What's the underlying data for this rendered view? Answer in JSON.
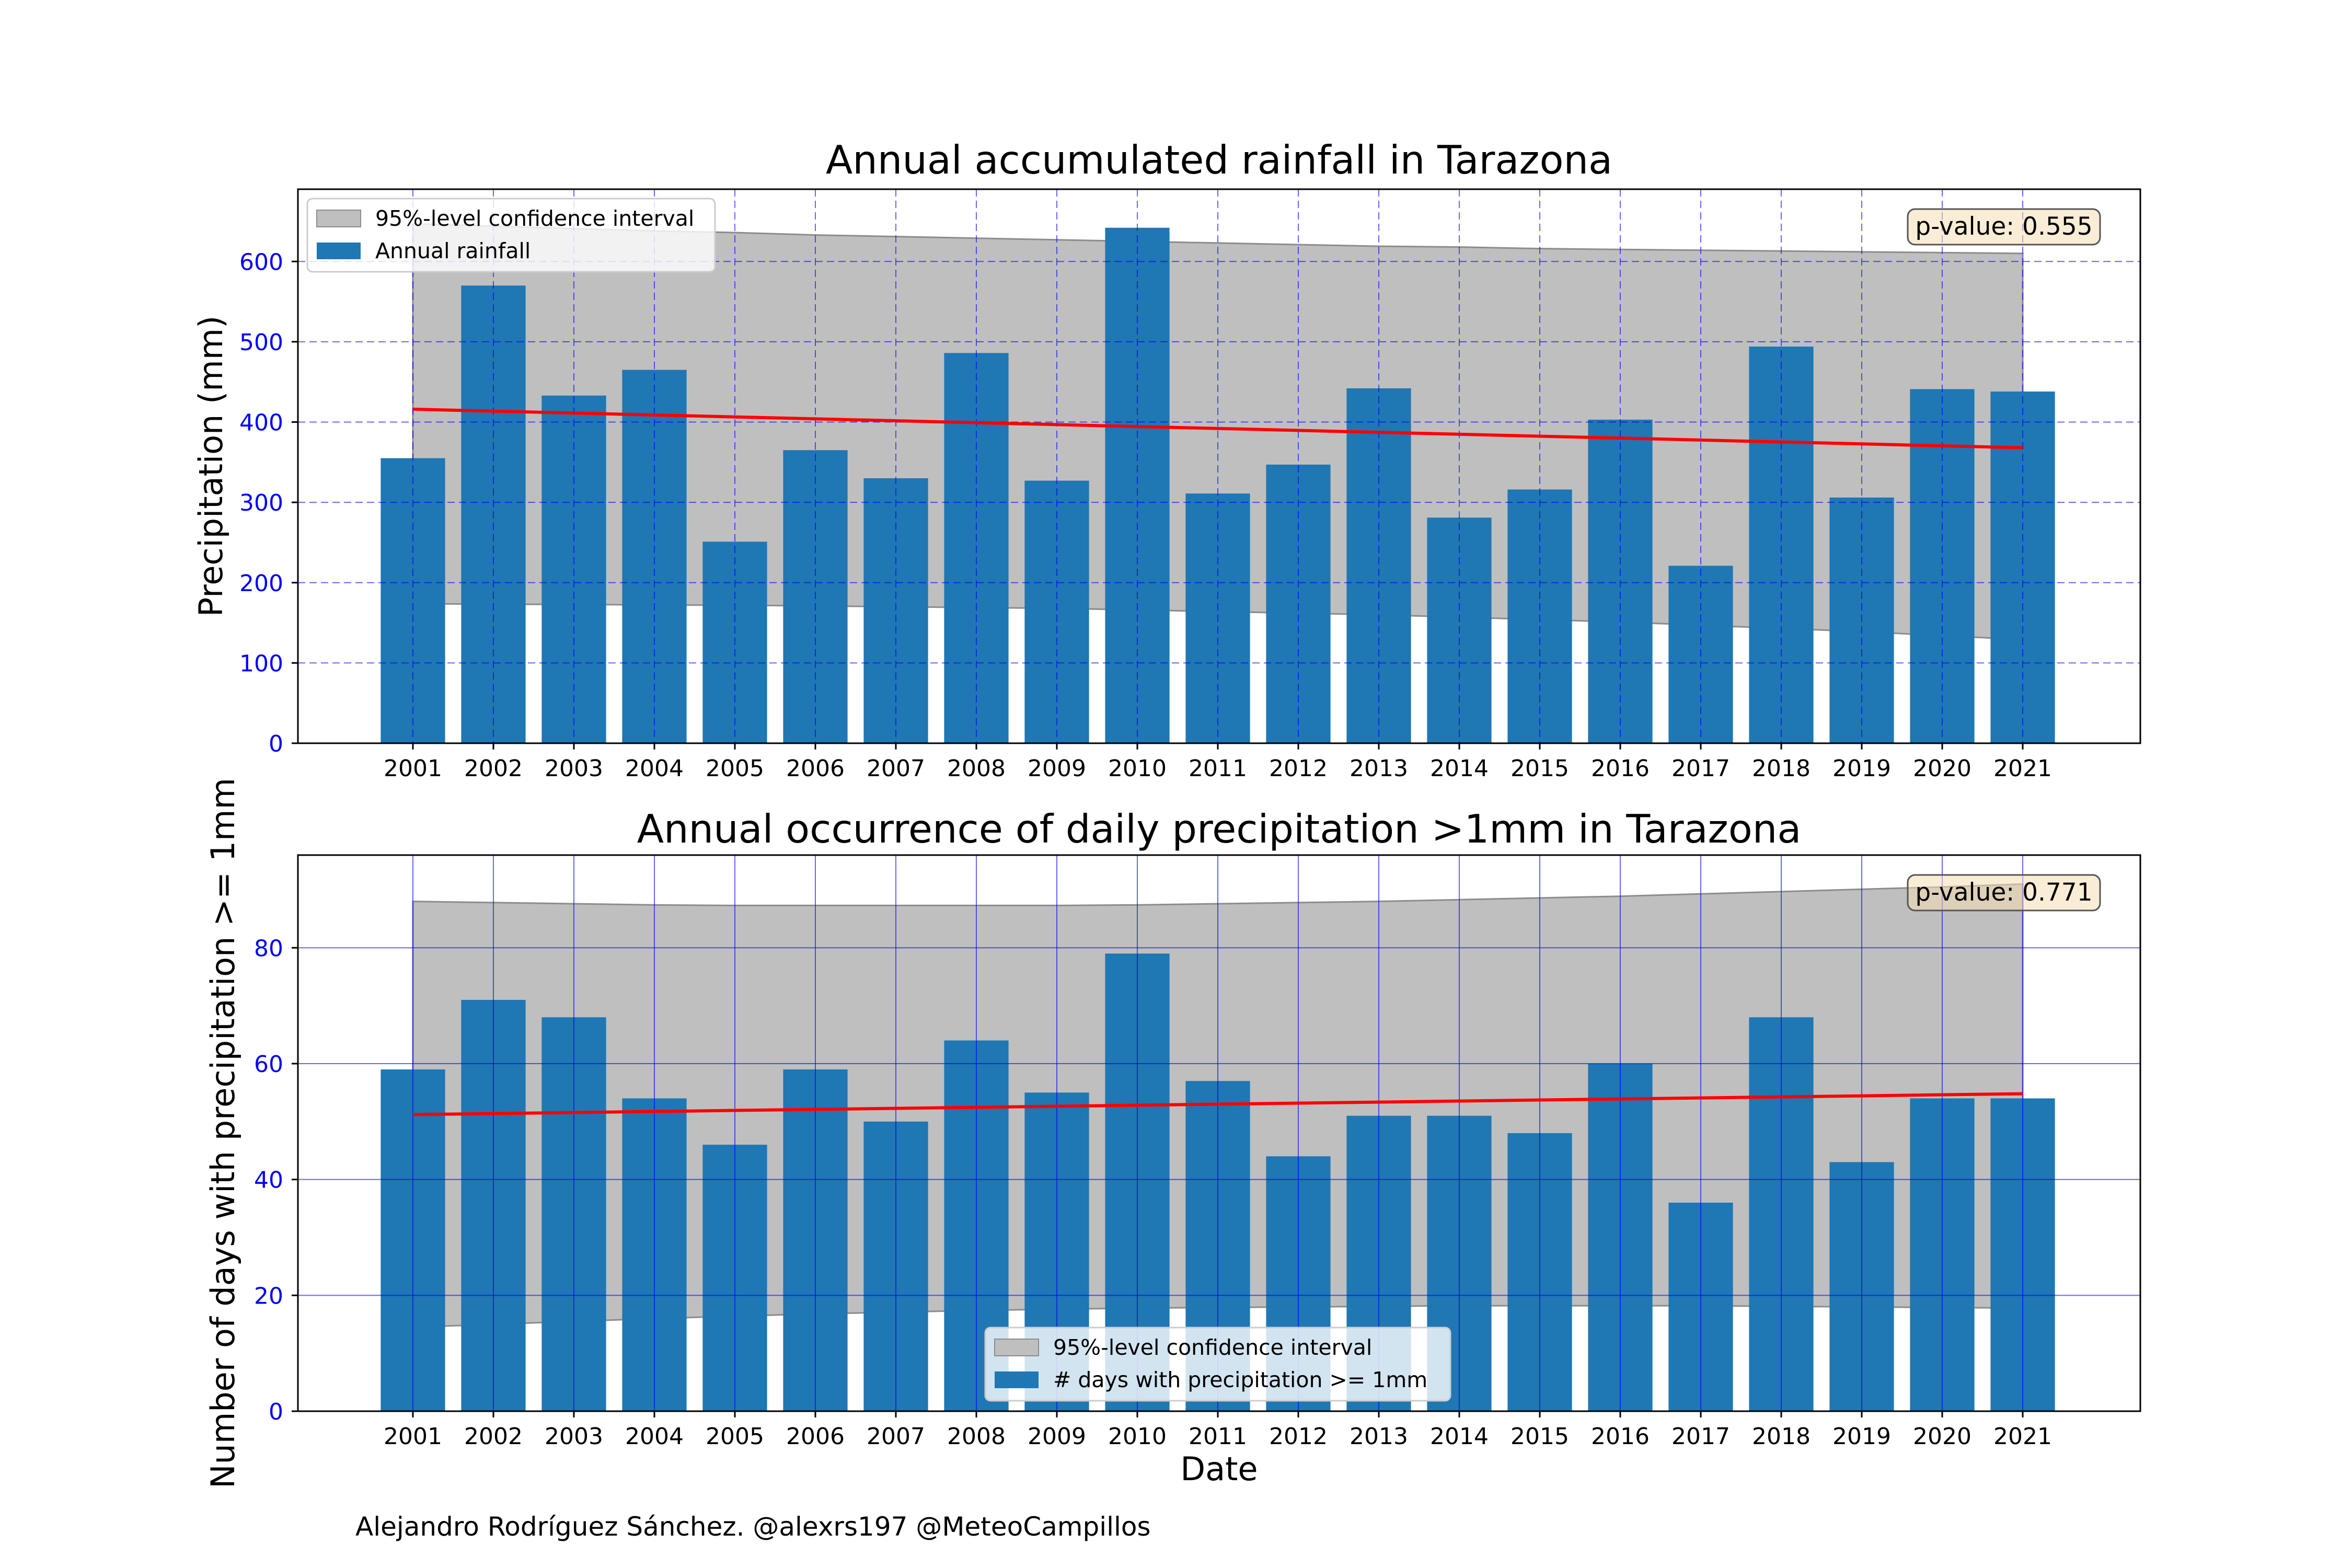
{
  "footer": "Alejandro Rodríguez Sánchez. @alexrs197 @MeteoCampillos",
  "colors": {
    "bar": "#1f77b4",
    "trend": "#ff0000",
    "confidence": "#bfbfbf",
    "grid": "#0000ff",
    "ytick": "#0000ff",
    "pvalue_box": "#f5deb3"
  },
  "chart_data": [
    {
      "type": "bar",
      "title": "Annual accumulated rainfall in Tarazona",
      "xlabel": "",
      "ylabel": "Precipitation (mm)",
      "categories": [
        "2001",
        "2002",
        "2003",
        "2004",
        "2005",
        "2006",
        "2007",
        "2008",
        "2009",
        "2010",
        "2011",
        "2012",
        "2013",
        "2014",
        "2015",
        "2016",
        "2017",
        "2018",
        "2019",
        "2020",
        "2021"
      ],
      "series": [
        {
          "name": "Annual rainfall",
          "values": [
            355,
            570,
            433,
            465,
            251,
            365,
            330,
            486,
            327,
            642,
            311,
            347,
            442,
            281,
            316,
            403,
            221,
            494,
            306,
            441,
            438
          ]
        }
      ],
      "trend": {
        "start": 416,
        "end": 368
      },
      "confidence_interval": {
        "label": "95%-level confidence interval",
        "upper": [
          647,
          644,
          641,
          638,
          636,
          633,
          631,
          629,
          627,
          625,
          623,
          621,
          619,
          618,
          616,
          615,
          614,
          613,
          612,
          611,
          610
        ],
        "lower": [
          174,
          173,
          173,
          172,
          172,
          171,
          170,
          169,
          168,
          166,
          164,
          162,
          160,
          157,
          154,
          151,
          147,
          143,
          139,
          134,
          129
        ]
      },
      "p_value": "p-value: 0.555",
      "ylim": [
        0,
        690
      ],
      "yticks": [
        0,
        100,
        200,
        300,
        400,
        500,
        600
      ],
      "grid": true,
      "grid_style": "dashed",
      "legend": {
        "location": "top-left",
        "entries": [
          "95%-level confidence interval",
          "Annual rainfall"
        ]
      }
    },
    {
      "type": "bar",
      "title": "Annual occurrence of daily precipitation >1mm in Tarazona",
      "xlabel": "Date",
      "ylabel": "Number of days with precipitation >= 1mm",
      "categories": [
        "2001",
        "2002",
        "2003",
        "2004",
        "2005",
        "2006",
        "2007",
        "2008",
        "2009",
        "2010",
        "2011",
        "2012",
        "2013",
        "2014",
        "2015",
        "2016",
        "2017",
        "2018",
        "2019",
        "2020",
        "2021"
      ],
      "series": [
        {
          "name": "# days with precipitation >= 1mm",
          "values": [
            59,
            71,
            68,
            54,
            46,
            59,
            50,
            64,
            55,
            79,
            57,
            44,
            51,
            51,
            48,
            60,
            36,
            68,
            43,
            54,
            54
          ]
        }
      ],
      "trend": {
        "start": 51.2,
        "end": 54.8
      },
      "confidence_interval": {
        "label": "95%-level confidence interval",
        "upper": [
          88.0,
          87.8,
          87.6,
          87.4,
          87.3,
          87.3,
          87.3,
          87.3,
          87.3,
          87.4,
          87.6,
          87.8,
          88.0,
          88.3,
          88.6,
          88.9,
          89.3,
          89.7,
          90.1,
          90.5,
          91.0
        ],
        "lower": [
          14.5,
          15.0,
          15.5,
          16.0,
          16.4,
          16.8,
          17.1,
          17.4,
          17.6,
          17.8,
          17.9,
          18.0,
          18.1,
          18.2,
          18.2,
          18.2,
          18.2,
          18.1,
          18.0,
          17.9,
          17.8
        ]
      },
      "p_value": "p-value: 0.771",
      "ylim": [
        0,
        96
      ],
      "yticks": [
        0,
        20,
        40,
        60,
        80
      ],
      "grid": true,
      "grid_style": "solid",
      "legend": {
        "location": "bottom-center",
        "entries": [
          "95%-level confidence interval",
          "# days with precipitation >= 1mm"
        ]
      }
    }
  ]
}
